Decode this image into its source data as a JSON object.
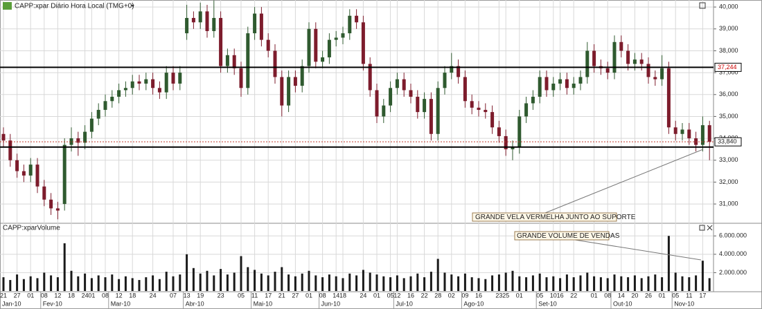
{
  "chart_data": [
    {
      "type": "candlestick",
      "title": "CAPP:xpar Diário Hora Local (TMG+0)",
      "up_color": "#2f5a2f",
      "down_color": "#7d1c2c",
      "open": [
        34200,
        33900,
        33000,
        32500,
        32300,
        32800,
        31800,
        31200,
        30800,
        31000,
        33700,
        34000,
        33800,
        34300,
        34900,
        35300,
        35700,
        35900,
        36200,
        36300,
        36600,
        36500,
        36700,
        36300,
        36100,
        37000,
        36500,
        38800,
        39500,
        39300,
        39800,
        38900,
        39500,
        37300,
        37800,
        37200,
        36300,
        38800,
        39700,
        38500,
        38000,
        36800,
        35500,
        36800,
        36400,
        37300,
        39000,
        37500,
        37700,
        38500,
        38600,
        38800,
        39600,
        39300,
        37400,
        36200,
        35000,
        35500,
        36300,
        36700,
        36200,
        35900,
        35200,
        35800,
        34200,
        36300,
        37000,
        37300,
        36800,
        35700,
        35400,
        35300,
        35200,
        34500,
        34100,
        33500,
        33600,
        35000,
        35600,
        35900,
        36800,
        36200,
        36500,
        36700,
        36300,
        36500,
        36800,
        38000,
        37300,
        37200,
        37000,
        38400,
        38000,
        37400,
        37600,
        37400,
        36800,
        36700,
        37200,
        34500,
        34200,
        34400,
        34000,
        33700,
        34600
      ],
      "high": [
        34500,
        34200,
        33300,
        32800,
        33100,
        33100,
        32100,
        31500,
        31100,
        34000,
        34500,
        34300,
        34600,
        35200,
        35600,
        36000,
        36200,
        36500,
        36600,
        36900,
        36900,
        37000,
        37000,
        36600,
        37300,
        37300,
        37300,
        40100,
        39800,
        40200,
        40100,
        40300,
        39800,
        38100,
        38100,
        37500,
        39100,
        40000,
        40000,
        38800,
        38300,
        37100,
        37100,
        37100,
        37600,
        39300,
        39300,
        38000,
        38800,
        38900,
        39100,
        39900,
        39900,
        39600,
        37700,
        36500,
        35800,
        36600,
        37000,
        37000,
        36500,
        36200,
        36100,
        36100,
        36600,
        37300,
        37900,
        37600,
        37100,
        36000,
        35700,
        35600,
        35500,
        34800,
        34400,
        33900,
        35300,
        35900,
        36200,
        37100,
        37100,
        36800,
        37000,
        37000,
        36800,
        37100,
        38400,
        38300,
        37600,
        37500,
        38700,
        38700,
        38300,
        37900,
        37900,
        37700,
        37100,
        37800,
        37500,
        34800,
        34700,
        34700,
        34300,
        35000,
        34800
      ],
      "low": [
        33600,
        32700,
        32200,
        32000,
        32000,
        31500,
        30900,
        30500,
        30300,
        30700,
        33400,
        33200,
        33500,
        34000,
        34600,
        35000,
        35400,
        35600,
        35900,
        36000,
        36200,
        36200,
        36000,
        35800,
        35800,
        36200,
        36200,
        38500,
        39000,
        39000,
        38600,
        38600,
        37000,
        37000,
        36900,
        35900,
        36000,
        38500,
        38200,
        37700,
        36500,
        35000,
        35200,
        36100,
        36100,
        37000,
        37200,
        37200,
        37400,
        38200,
        38300,
        38500,
        39000,
        37100,
        35900,
        34700,
        34700,
        35200,
        36000,
        35900,
        35600,
        34900,
        34900,
        33900,
        33900,
        36000,
        36700,
        36500,
        35400,
        35100,
        35000,
        34900,
        34200,
        33800,
        33200,
        33000,
        33300,
        34700,
        35300,
        35600,
        35900,
        35900,
        36200,
        36000,
        36000,
        36200,
        36500,
        37000,
        36900,
        36700,
        36700,
        37700,
        37100,
        37100,
        37100,
        36500,
        36400,
        36400,
        34200,
        33900,
        33900,
        33700,
        33400,
        33400,
        33000
      ],
      "close": [
        33900,
        33000,
        32500,
        32300,
        32800,
        31800,
        31200,
        30800,
        30700,
        33700,
        34000,
        33800,
        34300,
        34900,
        35300,
        35700,
        35900,
        36200,
        36300,
        36600,
        36500,
        36700,
        36300,
        36100,
        37000,
        36500,
        37000,
        39500,
        39300,
        39800,
        38900,
        39500,
        37300,
        37800,
        37200,
        36300,
        38800,
        39700,
        38500,
        38000,
        36800,
        35500,
        36800,
        36400,
        37300,
        39000,
        37500,
        37700,
        38500,
        38600,
        38800,
        39600,
        39300,
        37400,
        36200,
        35000,
        35500,
        36300,
        36700,
        36200,
        35900,
        35200,
        35800,
        34200,
        36300,
        37000,
        37300,
        36800,
        35700,
        35400,
        35300,
        35200,
        34500,
        34100,
        33500,
        33600,
        35000,
        35600,
        35900,
        36800,
        36200,
        36500,
        36700,
        36300,
        36500,
        36800,
        38000,
        37300,
        37200,
        37000,
        38400,
        38000,
        37400,
        37600,
        37400,
        36800,
        36700,
        37200,
        34500,
        34200,
        34400,
        34000,
        33700,
        34600,
        33840
      ],
      "ylim": [
        30150,
        40320
      ],
      "yticks": [
        {
          "value": 31000,
          "label": "31,000"
        },
        {
          "value": 32000,
          "label": "32,000"
        },
        {
          "value": 33000,
          "label": "33,000"
        },
        {
          "value": 34000,
          "label": "34,000"
        },
        {
          "value": 35000,
          "label": "35,000"
        },
        {
          "value": 36000,
          "label": "36,000"
        },
        {
          "value": 37000,
          "label": "37,000"
        },
        {
          "value": 38000,
          "label": "38,000"
        },
        {
          "value": 39000,
          "label": "39,000"
        },
        {
          "value": 40000,
          "label": "40,000"
        }
      ],
      "horizontal_lines": [
        {
          "value": 37244,
          "label": "37,244"
        },
        {
          "value": 33600
        }
      ],
      "last_price": {
        "value": 33840,
        "label": "33,840"
      },
      "annotation": "GRANDE VELA VERMELHA JUNTO AO SUPORTE"
    },
    {
      "type": "bar",
      "title": "CAPP:xparVolume",
      "color": "#1a1a1a",
      "values": [
        1500000,
        1200000,
        1800000,
        1300000,
        1600000,
        1400000,
        2000000,
        1700000,
        1500000,
        5200000,
        2200000,
        1600000,
        1900000,
        1400000,
        1700000,
        1500000,
        1800000,
        1300000,
        1600000,
        1400000,
        1200000,
        1500000,
        1700000,
        1300000,
        2100000,
        1600000,
        1800000,
        4000000,
        2500000,
        1900000,
        2200000,
        1700000,
        2400000,
        1800000,
        2000000,
        3800000,
        2600000,
        2300000,
        1900000,
        1700000,
        2100000,
        2600000,
        1800000,
        1600000,
        1900000,
        2200000,
        1700000,
        1500000,
        1800000,
        1600000,
        1400000,
        1900000,
        1700000,
        2300000,
        2000000,
        1800000,
        1600000,
        1500000,
        1700000,
        1400000,
        1600000,
        1900000,
        1500000,
        2100000,
        3500000,
        2000000,
        1800000,
        1600000,
        1900000,
        1500000,
        1400000,
        1300000,
        1700000,
        1800000,
        2000000,
        2200000,
        1600000,
        1500000,
        1700000,
        1900000,
        1500000,
        1600000,
        1400000,
        1800000,
        1500000,
        1700000,
        2000000,
        1600000,
        1500000,
        1400000,
        1800000,
        1600000,
        1500000,
        1700000,
        1400000,
        1600000,
        1800000,
        1500000,
        6000000,
        2000000,
        1600000,
        1500000,
        1700000,
        3300000,
        1400000
      ],
      "ylim": [
        0,
        7300000
      ],
      "yticks": [
        {
          "value": 2000000,
          "label": "2.000.000"
        },
        {
          "value": 4000000,
          "label": "4.000.000"
        },
        {
          "value": 6000000,
          "label": "6.000.000"
        }
      ],
      "categories": [
        "21",
        null,
        "27",
        null,
        "01",
        null,
        "08",
        null,
        "12",
        null,
        "18",
        null,
        "24",
        "01",
        null,
        "08",
        null,
        "12",
        null,
        "18",
        null,
        null,
        "24",
        null,
        null,
        "07",
        null,
        "13",
        null,
        "19",
        null,
        null,
        "23",
        null,
        null,
        "05",
        null,
        "11",
        null,
        "17",
        null,
        "21",
        null,
        "27",
        null,
        "01",
        null,
        "08",
        null,
        "14",
        "18",
        null,
        null,
        "24",
        null,
        "01",
        null,
        "05",
        "12",
        null,
        "16",
        null,
        "22",
        null,
        "28",
        null,
        "02",
        null,
        "09",
        null,
        "16",
        null,
        null,
        "23",
        "25",
        null,
        "01",
        null,
        null,
        "05",
        null,
        "10",
        "16",
        null,
        "22",
        null,
        null,
        "01",
        null,
        "08",
        null,
        "14",
        null,
        "20",
        null,
        "26",
        null,
        "01",
        null,
        "05",
        null,
        "11",
        null,
        "17",
        null
      ],
      "month_categories": [
        "Jan-10",
        null,
        null,
        null,
        null,
        null,
        "Fev-10",
        null,
        null,
        null,
        null,
        null,
        null,
        null,
        null,
        null,
        "Mar-10",
        null,
        null,
        null,
        null,
        null,
        null,
        null,
        null,
        null,
        null,
        "Abr-10",
        null,
        null,
        null,
        null,
        null,
        null,
        null,
        null,
        null,
        "Mai-10",
        null,
        null,
        null,
        null,
        null,
        null,
        null,
        null,
        null,
        "Jun-10",
        null,
        null,
        null,
        null,
        null,
        null,
        null,
        null,
        null,
        null,
        "Jul-10",
        null,
        null,
        null,
        null,
        null,
        null,
        null,
        null,
        null,
        "Ago-10",
        null,
        null,
        null,
        null,
        null,
        null,
        null,
        null,
        null,
        null,
        "Set-10",
        null,
        null,
        null,
        null,
        null,
        null,
        null,
        null,
        null,
        null,
        "Out-10",
        null,
        null,
        null,
        null,
        null,
        null,
        null,
        null,
        "Nov-10",
        null,
        null,
        null,
        null,
        null
      ],
      "annotation": "GRANDE VOLUME DE VENDAS"
    }
  ]
}
